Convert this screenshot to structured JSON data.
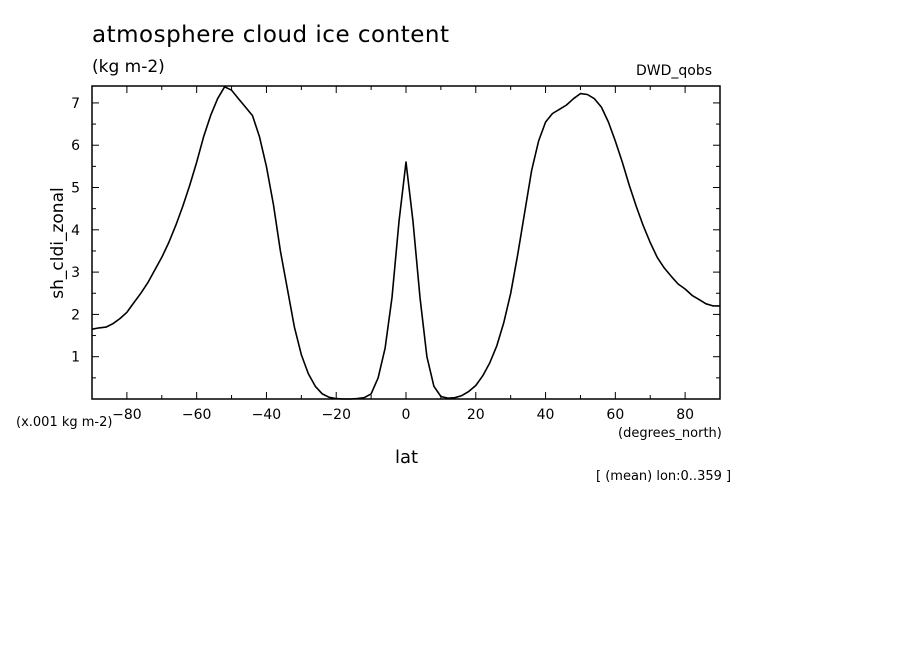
{
  "header": {
    "title": "atmosphere cloud ice content",
    "units": "(kg m-2)",
    "source": "DWD_qobs"
  },
  "axes": {
    "ylabel": "sh_cldi_zonal",
    "y_scale_note": "(x.001 kg m-2)",
    "xlabel": "lat",
    "x_units": "(degrees_north)"
  },
  "footer": {
    "note": "[ (mean) lon:0..359 ]"
  },
  "chart_data": {
    "type": "line",
    "xlabel": "lat",
    "ylabel": "sh_cldi_zonal",
    "xlim": [
      -90,
      90
    ],
    "ylim": [
      0,
      7.4
    ],
    "x_ticks": [
      -80,
      -60,
      -40,
      -20,
      0,
      20,
      40,
      60,
      80
    ],
    "y_ticks": [
      1,
      2,
      3,
      4,
      5,
      6,
      7
    ],
    "grid": false,
    "series": [
      {
        "x": [
          -90,
          -88,
          -86,
          -84,
          -82,
          -80,
          -78,
          -76,
          -74,
          -72,
          -70,
          -68,
          -66,
          -64,
          -62,
          -60,
          -58,
          -56,
          -54,
          -52,
          -50,
          -48,
          -46,
          -44,
          -42,
          -40,
          -38,
          -36,
          -34,
          -32,
          -30,
          -28,
          -26,
          -24,
          -22,
          -20,
          -18,
          -16,
          -14,
          -12,
          -10,
          -8,
          -6,
          -4,
          -2,
          0,
          2,
          4,
          6,
          8,
          10,
          12,
          14,
          16,
          18,
          20,
          22,
          24,
          26,
          28,
          30,
          32,
          34,
          36,
          38,
          40,
          42,
          44,
          46,
          48,
          50,
          52,
          54,
          56,
          58,
          60,
          62,
          64,
          66,
          68,
          70,
          72,
          74,
          76,
          78,
          80,
          82,
          84,
          86,
          88,
          90
        ],
        "y": [
          1.65,
          1.68,
          1.7,
          1.78,
          1.9,
          2.05,
          2.28,
          2.5,
          2.75,
          3.05,
          3.35,
          3.7,
          4.1,
          4.55,
          5.05,
          5.6,
          6.2,
          6.7,
          7.1,
          7.38,
          7.3,
          7.1,
          6.9,
          6.7,
          6.2,
          5.5,
          4.6,
          3.5,
          2.6,
          1.7,
          1.05,
          0.6,
          0.3,
          0.12,
          0.04,
          0.01,
          0.0,
          0.0,
          0.01,
          0.03,
          0.12,
          0.5,
          1.2,
          2.4,
          4.2,
          5.6,
          4.2,
          2.4,
          1.0,
          0.3,
          0.06,
          0.02,
          0.03,
          0.08,
          0.18,
          0.32,
          0.55,
          0.85,
          1.25,
          1.8,
          2.5,
          3.4,
          4.4,
          5.4,
          6.1,
          6.55,
          6.75,
          6.85,
          6.95,
          7.1,
          7.22,
          7.2,
          7.1,
          6.9,
          6.55,
          6.1,
          5.6,
          5.05,
          4.55,
          4.1,
          3.7,
          3.35,
          3.1,
          2.9,
          2.72,
          2.6,
          2.45,
          2.35,
          2.25,
          2.2,
          2.2
        ]
      }
    ]
  }
}
